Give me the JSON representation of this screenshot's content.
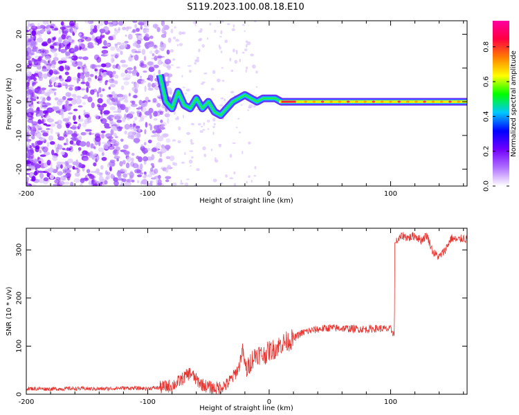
{
  "title": "S119.2023.100.08.18.E10",
  "chart_data": [
    {
      "type": "heatmap",
      "xlabel": "Height of straight line (km)",
      "ylabel": "Frequency (Hz)",
      "xlim": [
        -200,
        163
      ],
      "ylim": [
        -25,
        24
      ],
      "xticks": [
        -200,
        -100,
        0,
        100
      ],
      "yticks": [
        -20,
        -10,
        0,
        10,
        20
      ],
      "grid": false,
      "colorbar": {
        "label": "Normalized spectral amplitude",
        "range": [
          0,
          0.95
        ],
        "ticks": [
          0.0,
          0.2,
          0.4,
          0.6,
          0.8
        ],
        "colors": [
          "#ffffff",
          "#b070ff",
          "#7000ff",
          "#0000ff",
          "#00c8ff",
          "#00ff00",
          "#ffff00",
          "#ff8000",
          "#ff0040",
          "#ff00a0"
        ]
      },
      "signal_trace": {
        "x": [
          -90,
          -85,
          -80,
          -75,
          -70,
          -65,
          -60,
          -55,
          -50,
          -45,
          -40,
          -35,
          -30,
          -25,
          -20,
          -15,
          -10,
          -5,
          0,
          5,
          10,
          20,
          40,
          60,
          80,
          100,
          120,
          140,
          163
        ],
        "y": [
          8,
          0,
          -2,
          3,
          -1,
          -2,
          1,
          -2,
          0,
          -3,
          -4,
          -2,
          0,
          1,
          2,
          1,
          0,
          1,
          1,
          1,
          0,
          0,
          0,
          0,
          0,
          0,
          0,
          0,
          0
        ]
      }
    },
    {
      "type": "line",
      "xlabel": "Height of straight line (km)",
      "ylabel": "SNR (10 * v/v)",
      "xlim": [
        -200,
        163
      ],
      "ylim": [
        0,
        345
      ],
      "xticks": [
        -200,
        -100,
        0,
        100
      ],
      "yticks": [
        0,
        100,
        200,
        300
      ],
      "grid": false,
      "series": [
        {
          "color": "#e8322e",
          "x": [
            -200,
            -180,
            -160,
            -140,
            -120,
            -100,
            -90,
            -80,
            -75,
            -70,
            -65,
            -60,
            -55,
            -50,
            -45,
            -40,
            -35,
            -30,
            -25,
            -22,
            -20,
            -18,
            -15,
            -10,
            -5,
            0,
            5,
            10,
            15,
            20,
            25,
            30,
            40,
            50,
            60,
            70,
            80,
            90,
            100,
            103,
            104,
            105,
            110,
            115,
            120,
            125,
            130,
            135,
            140,
            145,
            150,
            155,
            160,
            163
          ],
          "y": [
            12,
            11,
            12,
            11,
            13,
            12,
            14,
            18,
            25,
            35,
            45,
            30,
            20,
            15,
            12,
            15,
            20,
            35,
            55,
            95,
            60,
            50,
            70,
            85,
            80,
            90,
            95,
            105,
            110,
            115,
            125,
            130,
            135,
            138,
            137,
            136,
            135,
            137,
            135,
            125,
            315,
            318,
            330,
            325,
            330,
            320,
            330,
            295,
            285,
            300,
            325,
            320,
            325,
            320
          ]
        }
      ]
    }
  ]
}
